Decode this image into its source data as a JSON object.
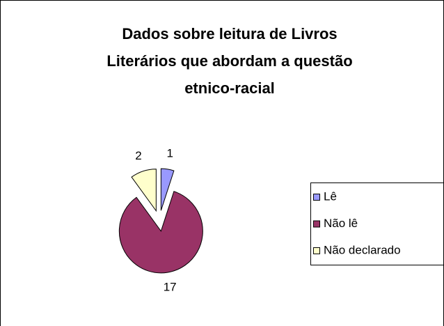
{
  "chart_data": {
    "type": "pie",
    "title": [
      "Dados sobre leitura de Livros",
      "Literários que abordam a questão",
      "etnico-racial"
    ],
    "categories": [
      "Lê",
      "Não lê",
      "Não declarado"
    ],
    "values": [
      1,
      17,
      2
    ],
    "colors": [
      "#9999ff",
      "#993366",
      "#ffffcc"
    ],
    "legend": "right"
  }
}
